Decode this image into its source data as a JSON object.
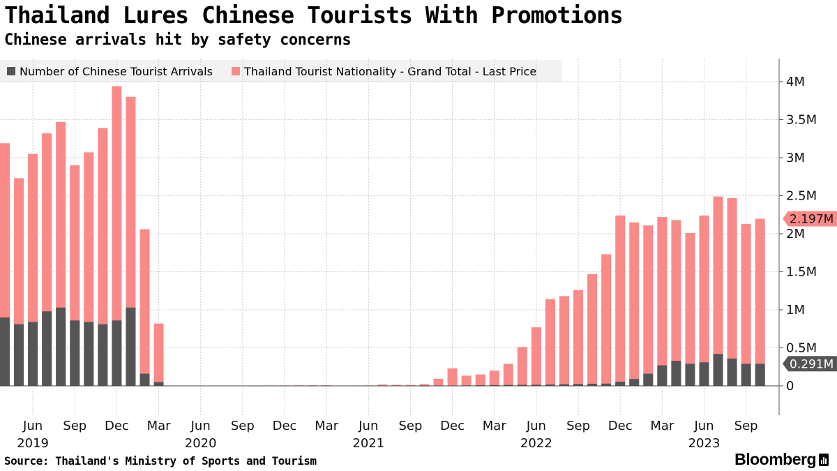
{
  "title": "Thailand Lures Chinese Tourists With Promotions",
  "subtitle": "Chinese arrivals hit by safety concerns",
  "source": "Source: Thailand's Ministry of Sports and Tourism",
  "brand": "Bloomberg",
  "colors": {
    "chinese": "#555555",
    "total": "#f98a88",
    "grid": "#cccccc"
  },
  "legend": {
    "chinese": "Number of Chinese Tourist Arrivals",
    "total": "Thailand Tourist Nationality - Grand Total - Last Price"
  },
  "chart_data": {
    "type": "bar",
    "title": "Thailand Lures Chinese Tourists With Promotions",
    "subtitle": "Chinese arrivals hit by safety concerns",
    "categories": [
      "2019-04",
      "2019-05",
      "2019-06",
      "2019-07",
      "2019-08",
      "2019-09",
      "2019-10",
      "2019-11",
      "2019-12",
      "2020-01",
      "2020-02",
      "2020-03",
      "2020-04",
      "2020-05",
      "2020-06",
      "2020-07",
      "2020-08",
      "2020-09",
      "2020-10",
      "2020-11",
      "2020-12",
      "2021-01",
      "2021-02",
      "2021-03",
      "2021-04",
      "2021-05",
      "2021-06",
      "2021-07",
      "2021-08",
      "2021-09",
      "2021-10",
      "2021-11",
      "2021-12",
      "2022-01",
      "2022-02",
      "2022-03",
      "2022-04",
      "2022-05",
      "2022-06",
      "2022-07",
      "2022-08",
      "2022-09",
      "2022-10",
      "2022-11",
      "2022-12",
      "2023-01",
      "2023-02",
      "2023-03",
      "2023-04",
      "2023-05",
      "2023-06",
      "2023-07",
      "2023-08",
      "2023-09",
      "2023-10"
    ],
    "series": [
      {
        "name": "Thailand Tourist Nationality - Grand Total - Last Price",
        "values": [
          3190000,
          2730000,
          3050000,
          3320000,
          3470000,
          2900000,
          3070000,
          3390000,
          3940000,
          3800000,
          2060000,
          820000,
          0,
          0,
          0,
          0,
          0,
          0,
          1200,
          6000,
          6500,
          7700,
          7900,
          7800,
          4600,
          5200,
          5900,
          18000,
          14000,
          13000,
          23000,
          93000,
          230000,
          134000,
          150000,
          200000,
          290000,
          510000,
          770000,
          1140000,
          1180000,
          1260000,
          1470000,
          1730000,
          2240000,
          2150000,
          2110000,
          2220000,
          2180000,
          2010000,
          2240000,
          2490000,
          2470000,
          2130000,
          2197000
        ]
      },
      {
        "name": "Number of Chinese Tourist Arrivals",
        "values": [
          900000,
          810000,
          840000,
          980000,
          1030000,
          860000,
          840000,
          810000,
          860000,
          1030000,
          160000,
          50000,
          0,
          0,
          0,
          0,
          0,
          0,
          0,
          0,
          0,
          0,
          0,
          0,
          0,
          0,
          0,
          0,
          0,
          0,
          1000,
          2000,
          4000,
          6000,
          8000,
          10000,
          12000,
          14000,
          15000,
          18000,
          21000,
          25000,
          28000,
          30000,
          55000,
          90000,
          160000,
          270000,
          330000,
          290000,
          310000,
          420000,
          360000,
          290000,
          291000
        ]
      }
    ],
    "ylim": [
      0,
      4000000
    ],
    "yticks": [
      0,
      500000,
      1000000,
      1500000,
      2000000,
      2500000,
      3000000,
      3500000,
      4000000
    ],
    "ytick_labels": [
      "0",
      "0.5M",
      "1M",
      "1.5M",
      "2M",
      "2.5M",
      "3M",
      "3.5M",
      "4M"
    ],
    "xtick_labels": [
      {
        "month": "2019-06",
        "label": "Jun"
      },
      {
        "month": "2019-09",
        "label": "Sep"
      },
      {
        "month": "2019-12",
        "label": "Dec"
      },
      {
        "month": "2020-03",
        "label": "Mar"
      },
      {
        "month": "2020-06",
        "label": "Jun"
      },
      {
        "month": "2020-09",
        "label": "Sep"
      },
      {
        "month": "2020-12",
        "label": "Dec"
      },
      {
        "month": "2021-03",
        "label": "Mar"
      },
      {
        "month": "2021-06",
        "label": "Jun"
      },
      {
        "month": "2021-09",
        "label": "Sep"
      },
      {
        "month": "2021-12",
        "label": "Dec"
      },
      {
        "month": "2022-03",
        "label": "Mar"
      },
      {
        "month": "2022-06",
        "label": "Jun"
      },
      {
        "month": "2022-09",
        "label": "Sep"
      },
      {
        "month": "2022-12",
        "label": "Dec"
      },
      {
        "month": "2023-03",
        "label": "Mar"
      },
      {
        "month": "2023-06",
        "label": "Jun"
      },
      {
        "month": "2023-09",
        "label": "Sep"
      }
    ],
    "year_labels": [
      {
        "month": "2019-06",
        "label": "2019"
      },
      {
        "month": "2020-06",
        "label": "2020"
      },
      {
        "month": "2021-06",
        "label": "2021"
      },
      {
        "month": "2022-06",
        "label": "2022"
      },
      {
        "month": "2023-06",
        "label": "2023"
      }
    ],
    "last_value_labels": {
      "total": "2.197M",
      "chinese": "0.291M"
    },
    "legend_position": "top-left",
    "grid": true
  }
}
